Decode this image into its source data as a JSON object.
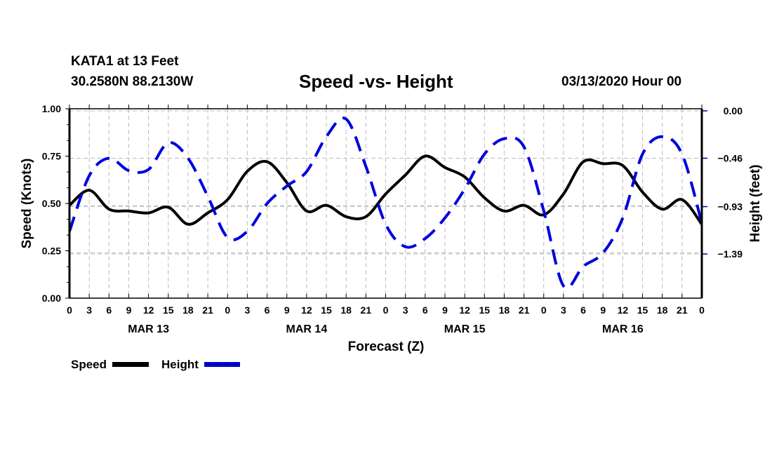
{
  "header": {
    "station": "KATA1 at 13 Feet",
    "coords": "30.2580N 88.2130W",
    "title": "Speed -vs- Height",
    "runtime": "03/13/2020 Hour 00"
  },
  "chart_data": {
    "type": "line",
    "title": "Speed -vs- Height",
    "xlabel": "Forecast (Z)",
    "ylabel": "Speed (Knots)",
    "y2label": "Height (feet)",
    "x_hours": [
      0,
      3,
      6,
      9,
      12,
      15,
      18,
      21,
      24,
      27,
      30,
      33,
      36,
      39,
      42,
      45,
      48,
      51,
      54,
      57,
      60,
      63,
      66,
      69,
      72,
      75,
      78,
      81,
      84,
      87,
      90,
      93,
      96
    ],
    "x_tick_labels": [
      "0",
      "3",
      "6",
      "9",
      "12",
      "15",
      "18",
      "21",
      "0",
      "3",
      "6",
      "9",
      "12",
      "15",
      "18",
      "21",
      "0",
      "3",
      "6",
      "9",
      "12",
      "15",
      "18",
      "21",
      "0",
      "3",
      "6",
      "9",
      "12",
      "15",
      "18",
      "21",
      "0"
    ],
    "day_labels": [
      {
        "label": "MAR 13",
        "center_hour": 12
      },
      {
        "label": "MAR 14",
        "center_hour": 36
      },
      {
        "label": "MAR 15",
        "center_hour": 60
      },
      {
        "label": "MAR 16",
        "center_hour": 84
      }
    ],
    "xlim": [
      0,
      96
    ],
    "ylim": [
      0,
      1.0
    ],
    "y_ticks": [
      0.0,
      0.25,
      0.5,
      0.75,
      1.0
    ],
    "y_tick_labels": [
      "0.00",
      "0.25",
      "0.50",
      "0.75",
      "1.00"
    ],
    "y2lim": [
      -1.84,
      0.02
    ],
    "y2_ticks": [
      0.0,
      -0.46,
      -0.93,
      -1.39
    ],
    "y2_tick_labels": [
      "0.00",
      "-0.46",
      "-0.93",
      "-1.39"
    ],
    "grid": true,
    "legend_position": "bottom-left",
    "series": [
      {
        "name": "Speed",
        "axis": "left",
        "color": "#000000",
        "style": "solid",
        "values": [
          0.49,
          0.57,
          0.47,
          0.46,
          0.45,
          0.48,
          0.39,
          0.45,
          0.52,
          0.67,
          0.72,
          0.61,
          0.46,
          0.49,
          0.43,
          0.43,
          0.55,
          0.65,
          0.75,
          0.69,
          0.64,
          0.53,
          0.46,
          0.49,
          0.44,
          0.55,
          0.72,
          0.71,
          0.7,
          0.56,
          0.47,
          0.52,
          0.39
        ]
      },
      {
        "name": "Height",
        "axis": "right",
        "color": "#0000dd",
        "style": "dashed",
        "values": [
          -1.17,
          -0.63,
          -0.46,
          -0.58,
          -0.57,
          -0.31,
          -0.46,
          -0.83,
          -1.23,
          -1.17,
          -0.9,
          -0.73,
          -0.59,
          -0.25,
          -0.08,
          -0.54,
          -1.1,
          -1.32,
          -1.24,
          -1.04,
          -0.76,
          -0.42,
          -0.27,
          -0.35,
          -0.97,
          -1.7,
          -1.51,
          -1.38,
          -1.04,
          -0.42,
          -0.25,
          -0.42,
          -1.09
        ]
      }
    ]
  }
}
